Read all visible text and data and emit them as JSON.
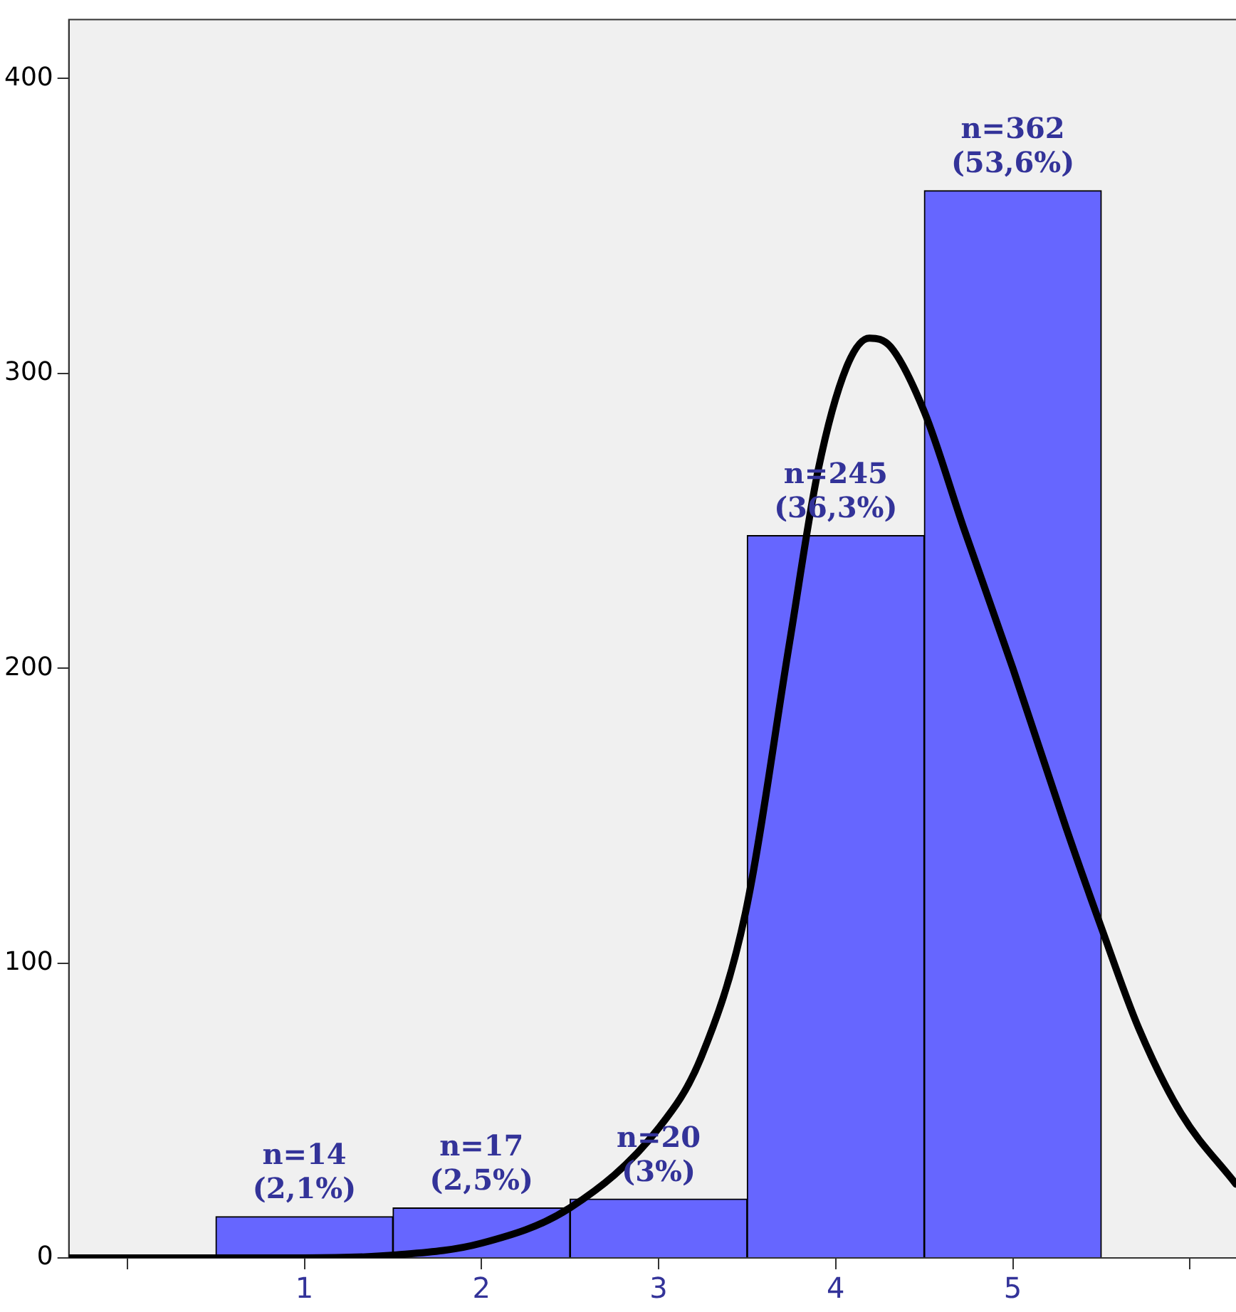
{
  "chart_data": {
    "type": "histogram",
    "bins": [
      0.5,
      1.5,
      2.5,
      3.5,
      4.5,
      5.5
    ],
    "values": [
      14,
      17,
      20,
      245,
      362
    ],
    "color": "#6666ff",
    "value_labels": [
      "n=14\n(2,1%)",
      "n=17\n(2,5%)",
      "n=20\n(3%)",
      "n=245\n(36,3%)",
      "n=362\n(53,6%)"
    ],
    "series": [
      {
        "type": "line",
        "color": "#000000",
        "x": [
          -0.33,
          1.0,
          1.52,
          2.0,
          2.5,
          3.0,
          3.24,
          3.49,
          3.74,
          3.9,
          4.06,
          4.19,
          4.31,
          4.5,
          4.72,
          5.0,
          5.3,
          5.5,
          5.71,
          5.95,
          6.26
        ],
        "values": [
          0,
          0,
          1,
          5,
          17,
          44,
          68,
          117,
          209,
          267,
          302,
          312,
          309,
          287,
          248,
          200,
          146,
          112,
          78,
          49,
          25
        ]
      }
    ],
    "xlim": [
      -0.33,
      6.26
    ],
    "xticks": [
      {
        "value": 0,
        "label": null
      },
      1,
      2,
      3,
      4,
      5,
      {
        "value": 6,
        "label": null
      }
    ],
    "ylim": [
      0,
      420
    ],
    "yticks": [
      0,
      100,
      200,
      300,
      400
    ],
    "grid": false,
    "legend": false,
    "marker": "none",
    "line_style": "solid"
  }
}
